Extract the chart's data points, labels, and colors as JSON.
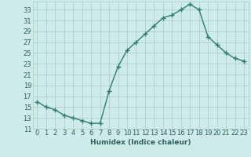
{
  "x": [
    0,
    1,
    2,
    3,
    4,
    5,
    6,
    7,
    8,
    9,
    10,
    11,
    12,
    13,
    14,
    15,
    16,
    17,
    18,
    19,
    20,
    21,
    22,
    23
  ],
  "y": [
    16,
    15,
    14.5,
    13.5,
    13,
    12.5,
    12,
    12,
    18,
    22.5,
    25.5,
    27,
    28.5,
    30,
    31.5,
    32,
    33,
    34,
    33,
    28,
    26.5,
    25,
    24,
    23.5
  ],
  "xlabel": "Humidex (Indice chaleur)",
  "xlim": [
    -0.5,
    23.5
  ],
  "ylim": [
    11,
    34.5
  ],
  "yticks": [
    11,
    13,
    15,
    17,
    19,
    21,
    23,
    25,
    27,
    29,
    31,
    33
  ],
  "line_color": "#2e7d6e",
  "marker": "+",
  "bg_color": "#ceeaea",
  "grid_color": "#aec8c8",
  "font_color": "#2e6060",
  "marker_size": 4,
  "marker_edge_width": 1.0,
  "line_width": 1.0,
  "label_fontsize": 6.5,
  "tick_fontsize": 6.0
}
